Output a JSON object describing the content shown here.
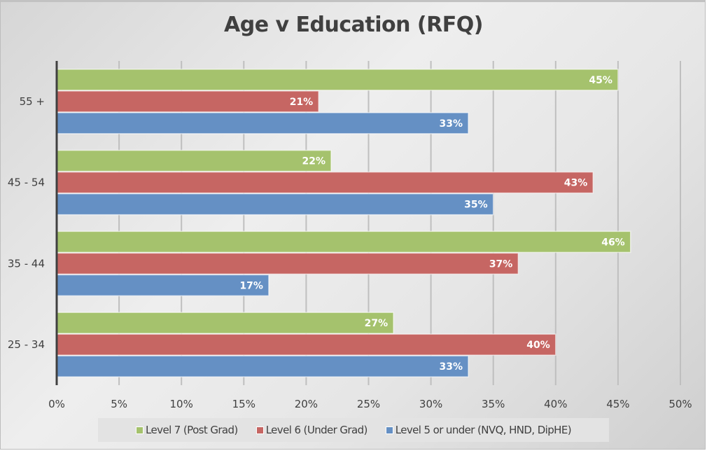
{
  "chart_data": {
    "type": "bar",
    "orientation": "horizontal",
    "title": "Age v Education (RFQ)",
    "xlabel": "",
    "ylabel": "",
    "xlim": [
      0,
      50
    ],
    "x_ticks": [
      "0%",
      "5%",
      "10%",
      "15%",
      "20%",
      "25%",
      "30%",
      "35%",
      "40%",
      "45%",
      "50%"
    ],
    "x_tick_values": [
      0,
      5,
      10,
      15,
      20,
      25,
      30,
      35,
      40,
      45,
      50
    ],
    "grid": true,
    "legend_position": "bottom",
    "categories": [
      "25 - 34",
      "35 - 44",
      "45 - 54",
      "55 +"
    ],
    "series": [
      {
        "name": "Level 5 or under (NVQ, HND, DipHE)",
        "color": "#6590c4",
        "values": [
          33,
          17,
          35,
          33
        ],
        "labels": [
          "33%",
          "17%",
          "35%",
          "33%"
        ]
      },
      {
        "name": "Level 6 (Under Grad)",
        "color": "#c66663",
        "values": [
          40,
          37,
          43,
          21
        ],
        "labels": [
          "40%",
          "37%",
          "43%",
          "21%"
        ]
      },
      {
        "name": "Level 7 (Post Grad)",
        "color": "#a5c26d",
        "values": [
          27,
          46,
          22,
          45
        ],
        "labels": [
          "27%",
          "46%",
          "22%",
          "45%"
        ]
      }
    ],
    "legend_order": [
      "Level 7 (Post Grad)",
      "Level 6 (Under Grad)",
      "Level 5 or under (NVQ, HND, DipHE)"
    ]
  },
  "colors": {
    "title": "#404040",
    "axis_text": "#404040",
    "gridline": "#bfbfbf",
    "axis_line": "#404040",
    "data_label": "#ffffff"
  }
}
